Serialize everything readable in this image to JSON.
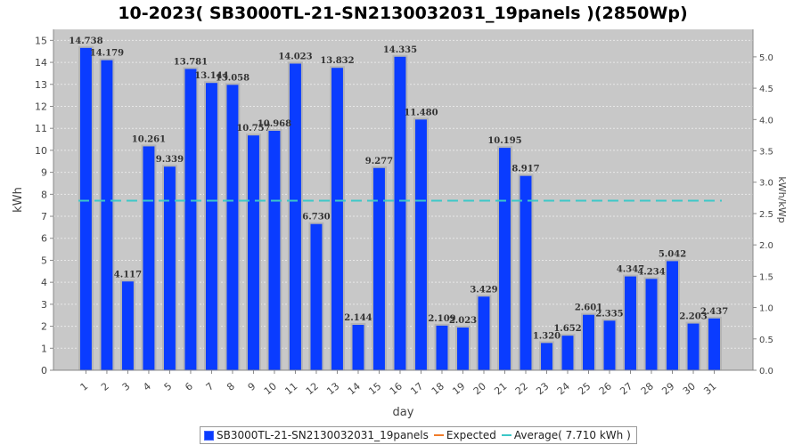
{
  "chart_data": {
    "type": "bar",
    "title": "10-2023( SB3000TL-21-SN2130032031_19panels )(2850Wp)",
    "xlabel": "day",
    "ylabel": "kWh",
    "y2label": "kWh/kWp",
    "ylim": [
      0,
      15.5
    ],
    "y2lim": [
      0,
      5.4386
    ],
    "yticks": [
      0,
      1,
      2,
      3,
      4,
      5,
      6,
      7,
      8,
      9,
      10,
      11,
      12,
      13,
      14,
      15
    ],
    "y2ticks": [
      "0.0",
      "0.5",
      "1.0",
      "1.5",
      "2.0",
      "2.5",
      "3.0",
      "3.5",
      "4.0",
      "4.5",
      "5.0"
    ],
    "y2tick_values": [
      0,
      0.5,
      1,
      1.5,
      2,
      2.5,
      3,
      3.5,
      4,
      4.5,
      5
    ],
    "categories": [
      "1",
      "2",
      "3",
      "4",
      "5",
      "6",
      "7",
      "8",
      "9",
      "10",
      "11",
      "12",
      "13",
      "14",
      "15",
      "16",
      "17",
      "18",
      "19",
      "20",
      "21",
      "22",
      "23",
      "24",
      "25",
      "26",
      "27",
      "28",
      "29",
      "30",
      "31"
    ],
    "series": [
      {
        "name": "SB3000TL-21-SN2130032031_19panels",
        "color": "#0a3cff",
        "values": [
          14.738,
          14.179,
          4.117,
          10.261,
          9.339,
          13.781,
          13.144,
          13.058,
          10.757,
          10.968,
          14.023,
          6.73,
          13.832,
          2.144,
          9.277,
          14.335,
          11.48,
          2.109,
          2.023,
          3.429,
          10.195,
          8.917,
          1.32,
          1.652,
          2.601,
          2.335,
          4.347,
          4.234,
          5.042,
          2.203,
          2.437
        ],
        "labels": [
          "14.738",
          "14.179",
          "4.117",
          "10.261",
          "9.339",
          "13.781",
          "13.144",
          "13.058",
          "10.757",
          "10.968",
          "14.023",
          "6.730",
          "13.832",
          "2.144",
          "9.277",
          "14.335",
          "11.480",
          "2.109",
          "2.023",
          "3.429",
          "10.195",
          "8.917",
          "1.320",
          "1.652",
          "2.601",
          "2.335",
          "4.347",
          "4.234",
          "5.042",
          "2.203",
          "2.437"
        ]
      }
    ],
    "average": 7.71,
    "legend": [
      {
        "label": "SB3000TL-21-SN2130032031_19panels",
        "kind": "bar",
        "color": "#0a3cff"
      },
      {
        "label": "Expected",
        "kind": "line",
        "color": "#f07c2a"
      },
      {
        "label": "Average( 7.710 kWh )",
        "kind": "line",
        "color": "#3cc8c8"
      }
    ],
    "legend_position": "bottom",
    "grid": true,
    "plot_background": "#c8c8c8"
  }
}
